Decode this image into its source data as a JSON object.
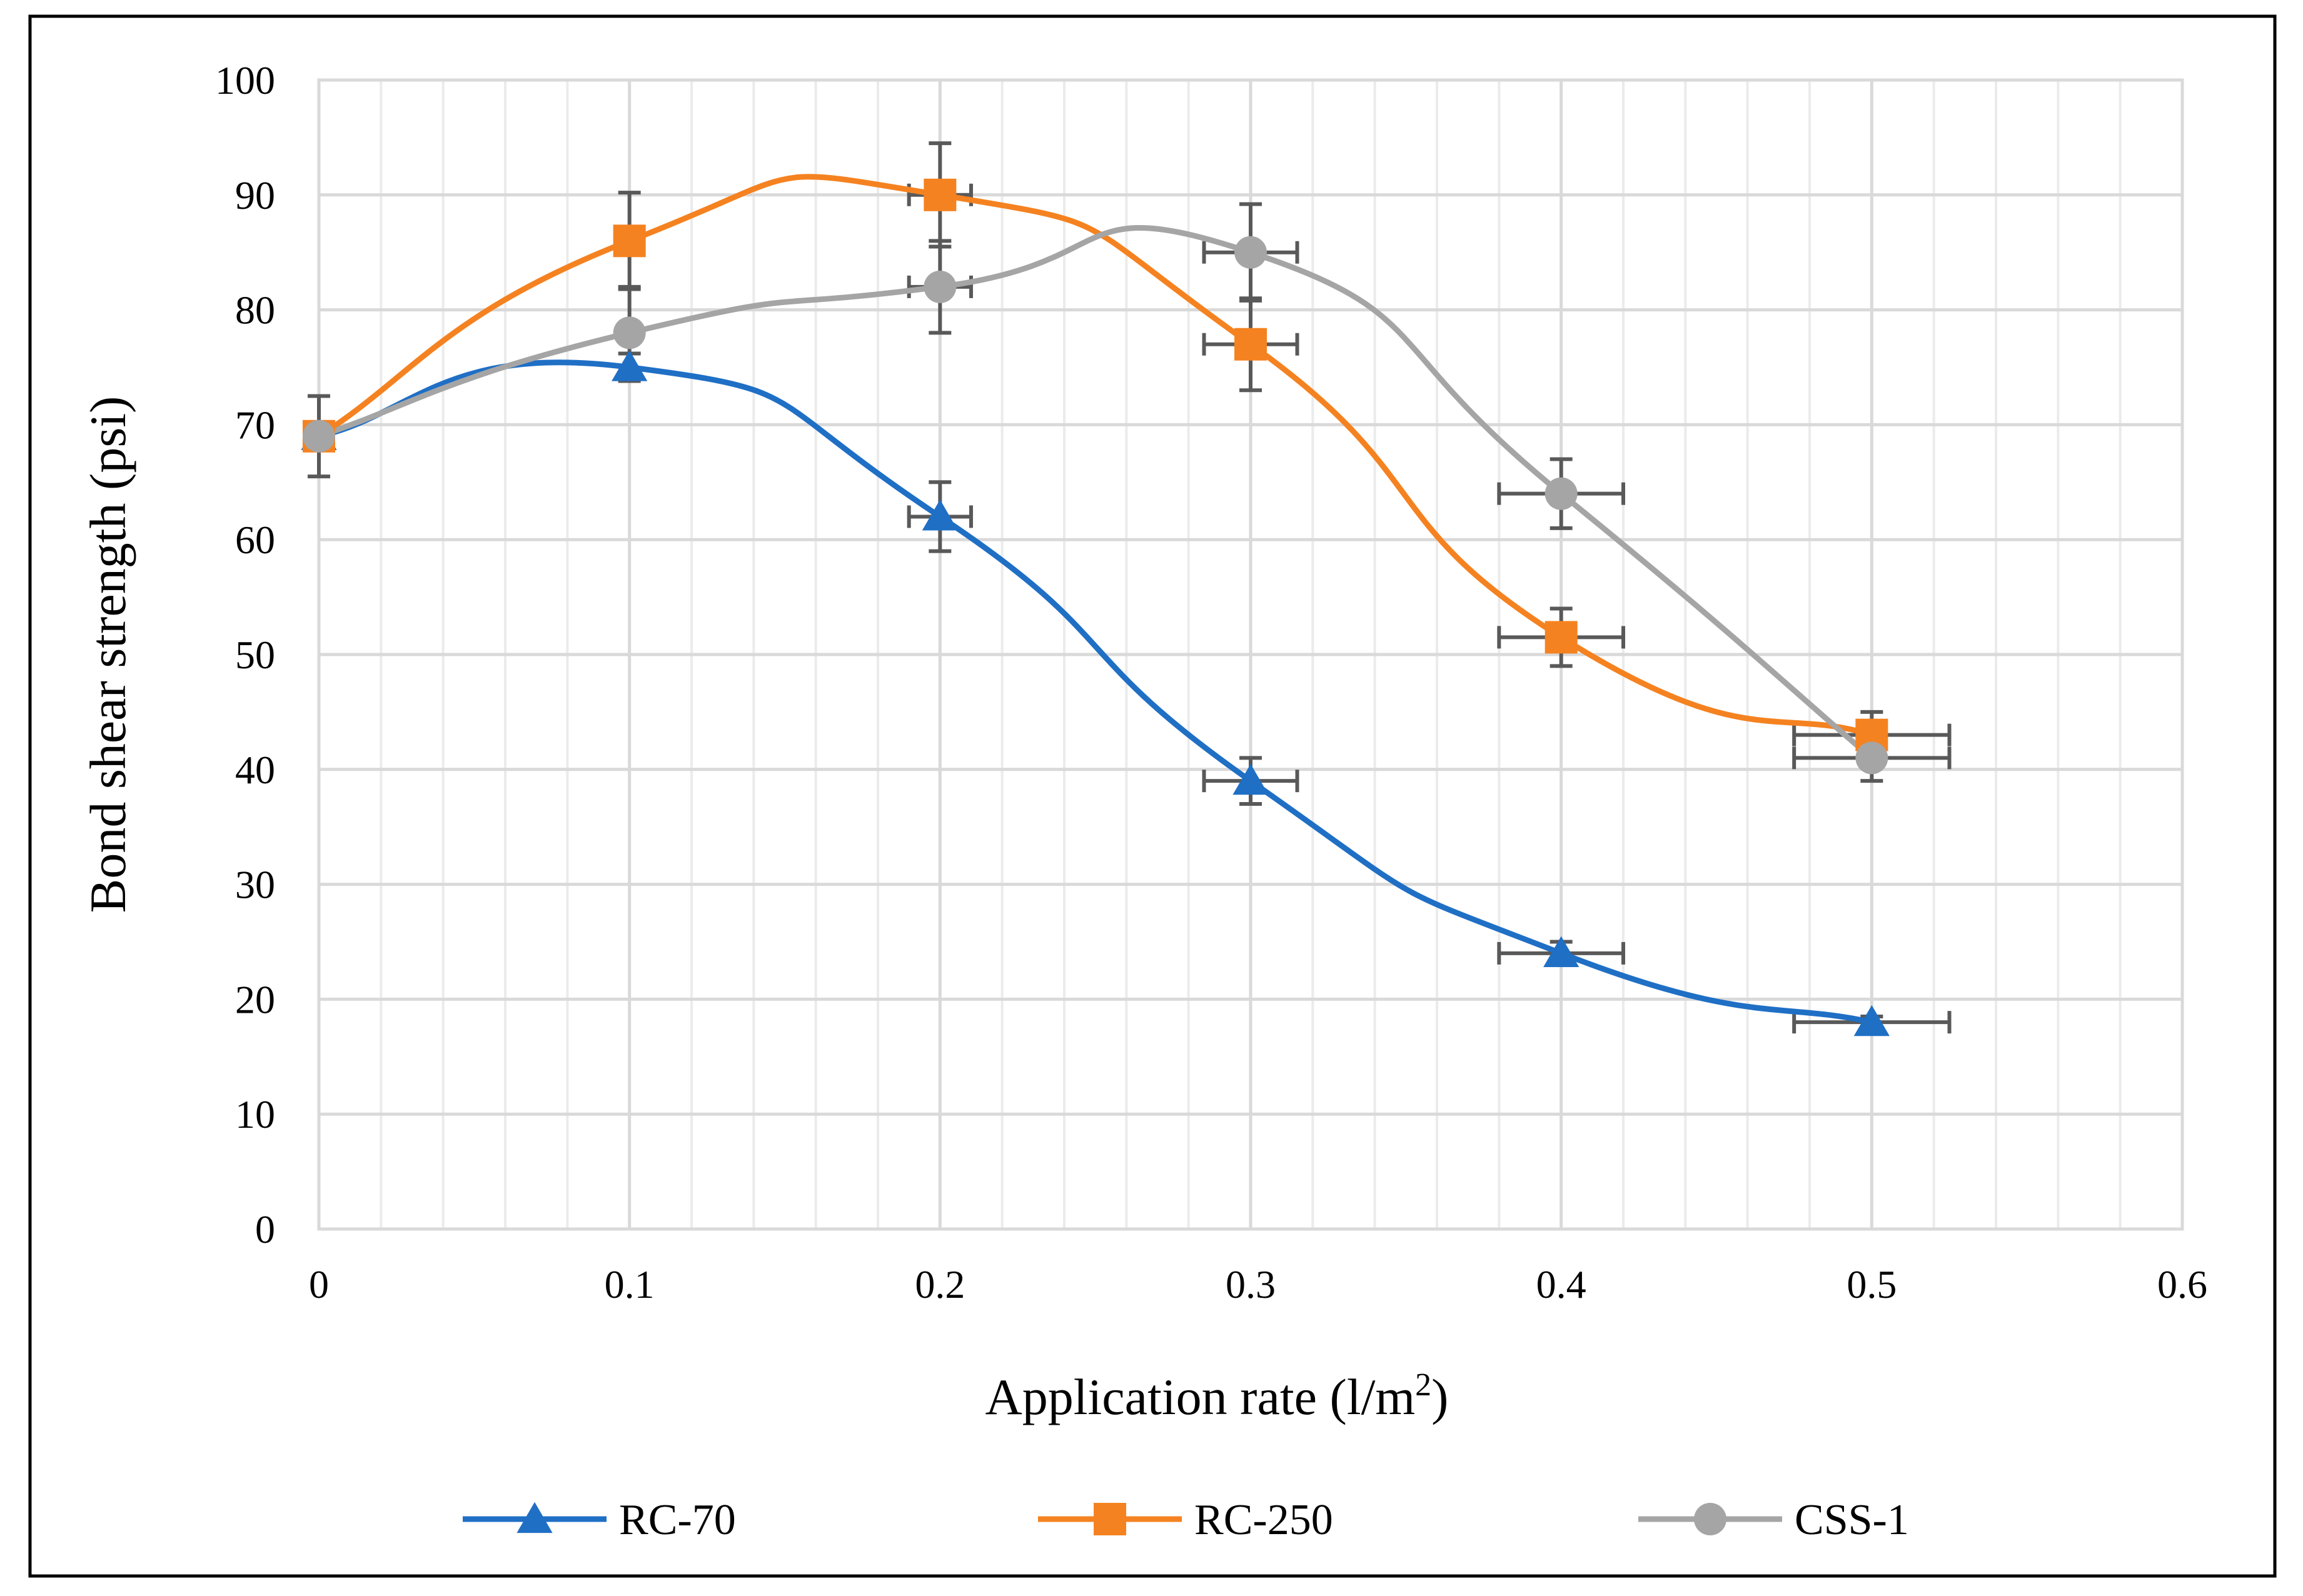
{
  "chart_data": {
    "type": "line",
    "title": "",
    "xlabel": "Application rate (l/m",
    "xlabel_superscript": "2",
    "xlabel_suffix": ")",
    "ylabel": "Bond shear strength (psi)",
    "xlim": [
      0,
      0.6
    ],
    "ylim": [
      0,
      100
    ],
    "x_ticks": [
      0,
      0.1,
      0.2,
      0.3,
      0.4,
      0.5,
      0.6
    ],
    "x_tick_labels": [
      "0",
      "0.1",
      "0.2",
      "0.3",
      "0.4",
      "0.5",
      "0.6"
    ],
    "y_ticks": [
      0,
      10,
      20,
      30,
      40,
      50,
      60,
      70,
      80,
      90,
      100
    ],
    "y_tick_labels": [
      "0",
      "10",
      "20",
      "30",
      "40",
      "50",
      "60",
      "70",
      "80",
      "90",
      "100"
    ],
    "x_minor_step": 0.02,
    "grid": true,
    "smooth": true,
    "legend_position": "bottom",
    "x": [
      0,
      0.1,
      0.2,
      0.3,
      0.4,
      0.5
    ],
    "series": [
      {
        "name": "RC-70",
        "marker": "triangle",
        "color": "#1F6FC5",
        "values": [
          69,
          75,
          62,
          39,
          24,
          18
        ],
        "y_err": [
          0,
          1.2,
          3,
          2,
          1,
          0.5
        ],
        "x_err": [
          0,
          0,
          0.01,
          0.015,
          0.02,
          0.025
        ]
      },
      {
        "name": "RC-250",
        "marker": "square",
        "color": "#F58220",
        "values": [
          69,
          86,
          90,
          77,
          51.5,
          43
        ],
        "y_err": [
          0,
          4.2,
          4.5,
          4,
          2.5,
          2
        ],
        "x_err": [
          0,
          0,
          0.01,
          0.015,
          0.02,
          0.025
        ]
      },
      {
        "name": "CSS-1",
        "marker": "circle",
        "color": "#A5A5A5",
        "values": [
          69,
          78,
          82,
          85,
          64,
          41
        ],
        "y_err": [
          3.5,
          4,
          4,
          4.2,
          3,
          2
        ],
        "x_err": [
          0,
          0,
          0.01,
          0.015,
          0.02,
          0.025
        ]
      }
    ]
  }
}
